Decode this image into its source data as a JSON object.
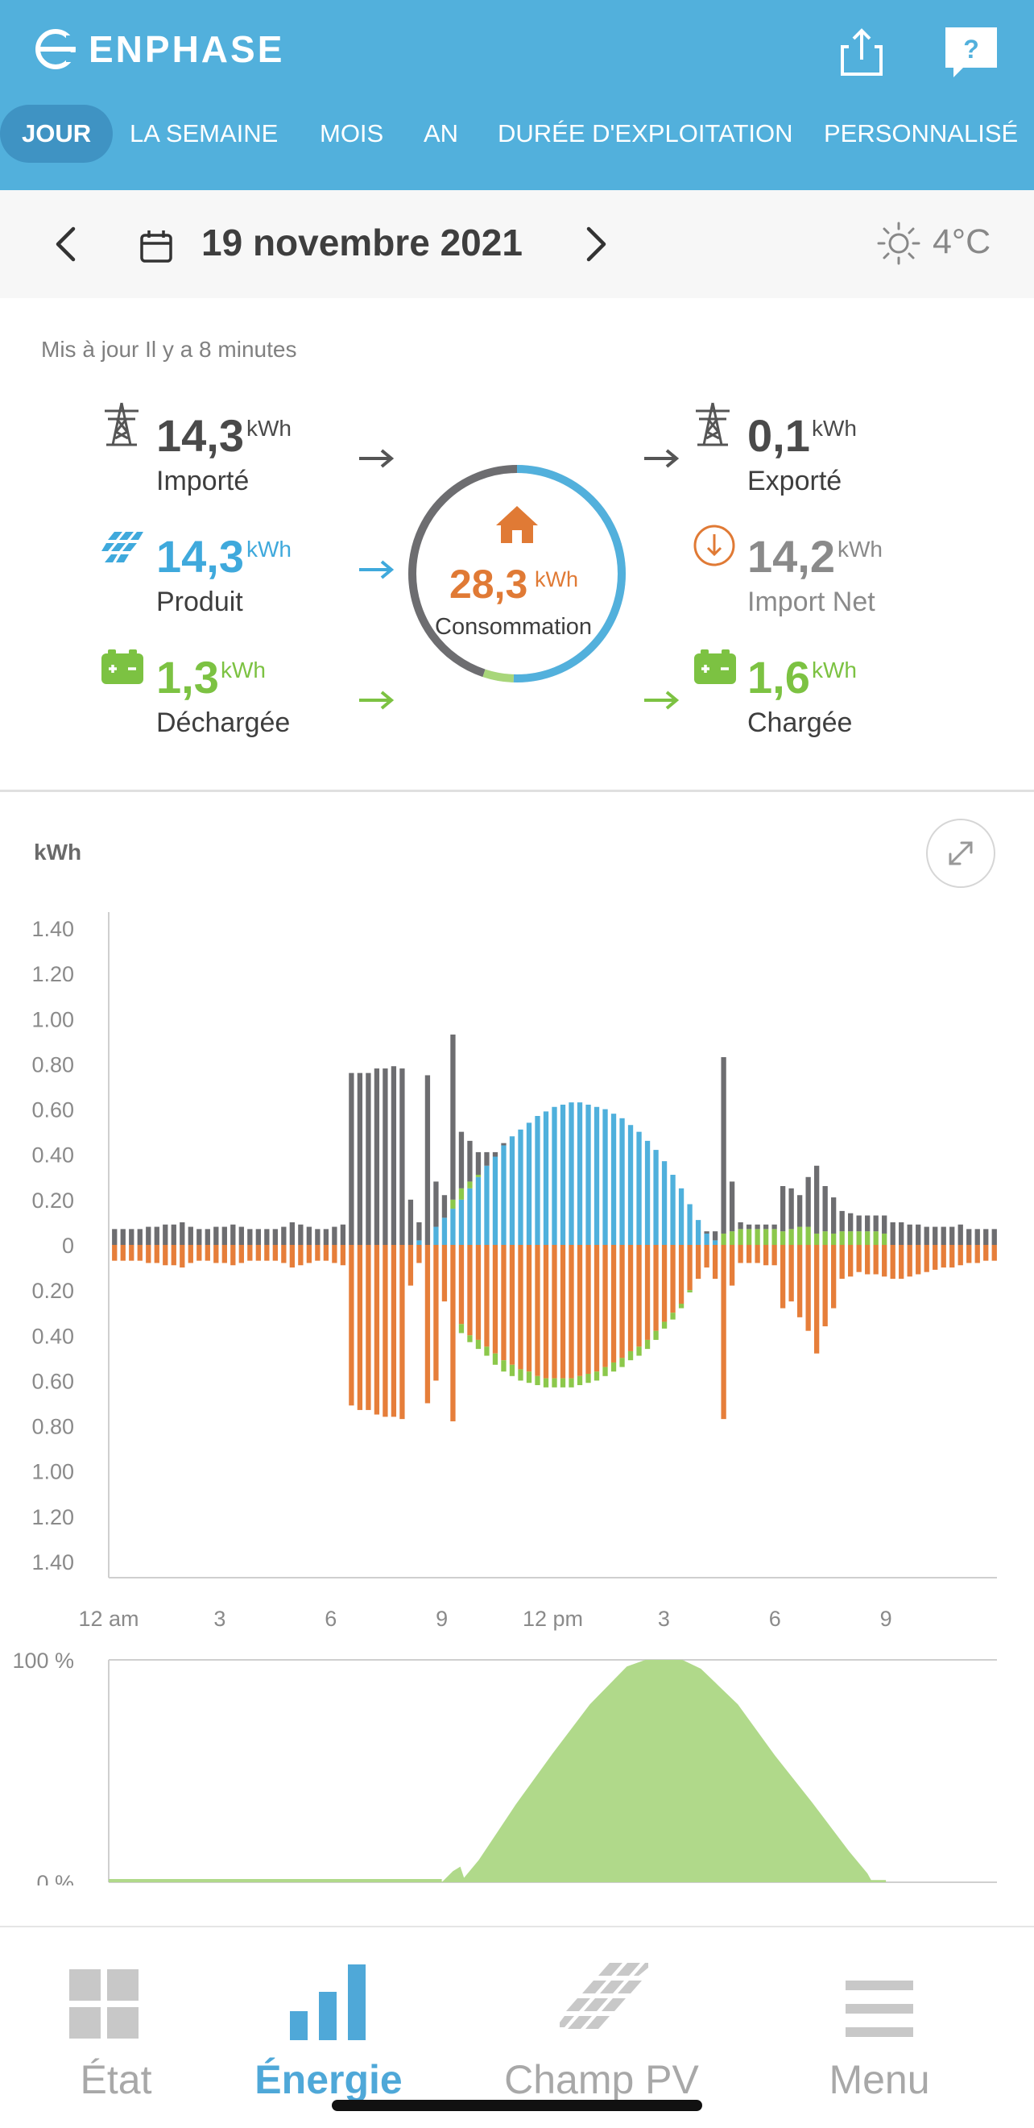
{
  "app": {
    "brand": "ENPHASE"
  },
  "header": {
    "tabs": [
      {
        "label": "JOUR",
        "active": true
      },
      {
        "label": "LA SEMAINE",
        "active": false
      },
      {
        "label": "MOIS",
        "active": false
      },
      {
        "label": "AN",
        "active": false
      },
      {
        "label": "DURÉE D'EXPLOITATION",
        "active": false
      },
      {
        "label": "PERSONNALISÉ",
        "active": false
      }
    ],
    "icons": {
      "share": "share-icon",
      "help": "help-icon"
    }
  },
  "datebar": {
    "date": "19 novembre 2021",
    "temperature": "4°C",
    "weather_icon": "sun-icon"
  },
  "summary": {
    "updated": "Mis à jour Il y a 8 minutes",
    "imported": {
      "value": "14,3",
      "unit": "kWh",
      "label": "Importé"
    },
    "produced": {
      "value": "14,3",
      "unit": "kWh",
      "label": "Produit"
    },
    "discharged": {
      "value": "1,3",
      "unit": "kWh",
      "label": "Déchargée"
    },
    "consumption": {
      "value": "28,3",
      "unit": "kWh",
      "label": "Consommation"
    },
    "exported": {
      "value": "0,1",
      "unit": "kWh",
      "label": "Exporté"
    },
    "net_import": {
      "value": "14,2",
      "unit": "kWh",
      "label": "Import Net"
    },
    "charged": {
      "value": "1,6",
      "unit": "kWh",
      "label": "Chargée"
    },
    "ring_shares": {
      "produced": 0.505,
      "discharged": 0.046,
      "imported": 0.449
    }
  },
  "colors": {
    "header": "#52b0dc",
    "grid": "#6d6d70",
    "solar": "#4fb0dc",
    "battery": "#8cc84b",
    "consumption": "#e67e3a",
    "soc_fill": "#b0d98a"
  },
  "chart_data": [
    {
      "type": "bar",
      "ylabel": "kWh",
      "yticks": [
        "1.40",
        "1.20",
        "1.00",
        "0.80",
        "0.60",
        "0.40",
        "0.20",
        "0",
        "0.20",
        "0.40",
        "0.60",
        "0.80",
        "1.00",
        "1.20",
        "1.40"
      ],
      "xticks": [
        "12 am",
        "3",
        "6",
        "9",
        "12 pm",
        "3",
        "6",
        "9"
      ],
      "ylim": [
        -1.4,
        1.4
      ],
      "interval_hours": 0.25,
      "series": {
        "grid": [
          0.07,
          0.07,
          0.07,
          0.07,
          0.08,
          0.08,
          0.09,
          0.09,
          0.1,
          0.08,
          0.07,
          0.07,
          0.08,
          0.08,
          0.09,
          0.08,
          0.07,
          0.07,
          0.07,
          0.07,
          0.08,
          0.1,
          0.09,
          0.08,
          0.07,
          0.07,
          0.08,
          0.09,
          0.76,
          0.76,
          0.76,
          0.78,
          0.78,
          0.79,
          0.78,
          0.2,
          0.08,
          0.75,
          0.2,
          0.1,
          0.73,
          0.25,
          0.18,
          0.1,
          0.06,
          0.02,
          0.01,
          0,
          0,
          0,
          0,
          0,
          0,
          0,
          0,
          0,
          0,
          0,
          0,
          0,
          0,
          0,
          0,
          0,
          0,
          0,
          0,
          0,
          0,
          0,
          0.01,
          0.04,
          0.78,
          0.22,
          0.03,
          0.02,
          0.02,
          0.02,
          0.02,
          0.2,
          0.18,
          0.14,
          0.22,
          0.3,
          0.2,
          0.16,
          0.09,
          0.08,
          0.07,
          0.07,
          0.07,
          0.08,
          0.1,
          0.1,
          0.09,
          0.09,
          0.08,
          0.08,
          0.08,
          0.08,
          0.09,
          0.07,
          0.07,
          0.07,
          0.07
        ],
        "solar": [
          0,
          0,
          0,
          0,
          0,
          0,
          0,
          0,
          0,
          0,
          0,
          0,
          0,
          0,
          0,
          0,
          0,
          0,
          0,
          0,
          0,
          0,
          0,
          0,
          0,
          0,
          0,
          0,
          0,
          0,
          0,
          0,
          0,
          0,
          0,
          0,
          0.02,
          0,
          0.08,
          0.12,
          0.16,
          0.2,
          0.25,
          0.3,
          0.35,
          0.39,
          0.44,
          0.48,
          0.51,
          0.54,
          0.57,
          0.59,
          0.61,
          0.62,
          0.63,
          0.63,
          0.62,
          0.61,
          0.6,
          0.58,
          0.56,
          0.53,
          0.5,
          0.46,
          0.42,
          0.37,
          0.31,
          0.25,
          0.18,
          0.11,
          0.05,
          0.02,
          0,
          0,
          0,
          0,
          0,
          0,
          0,
          0,
          0,
          0,
          0,
          0,
          0,
          0,
          0,
          0,
          0,
          0,
          0,
          0,
          0,
          0,
          0,
          0,
          0,
          0,
          0,
          0,
          0,
          0,
          0,
          0,
          0
        ],
        "battery_discharge": [
          0,
          0,
          0,
          0,
          0,
          0,
          0,
          0,
          0,
          0,
          0,
          0,
          0,
          0,
          0,
          0,
          0,
          0,
          0,
          0,
          0,
          0,
          0,
          0,
          0,
          0,
          0,
          0,
          0,
          0,
          0,
          0,
          0,
          0,
          0,
          0,
          0,
          0,
          0,
          0,
          0.04,
          0.05,
          0.03,
          0.01,
          0,
          0,
          0,
          0,
          0,
          0,
          0,
          0,
          0,
          0,
          0,
          0,
          0,
          0,
          0,
          0,
          0,
          0,
          0,
          0,
          0,
          0,
          0,
          0,
          0,
          0,
          0,
          0,
          0.05,
          0.06,
          0.07,
          0.07,
          0.07,
          0.07,
          0.07,
          0.06,
          0.07,
          0.08,
          0.08,
          0.05,
          0.06,
          0.05,
          0.06,
          0.06,
          0.06,
          0.06,
          0.06,
          0.05,
          0,
          0,
          0,
          0,
          0,
          0,
          0,
          0,
          0,
          0,
          0,
          0,
          0
        ],
        "consumption": [
          0.07,
          0.07,
          0.07,
          0.07,
          0.08,
          0.08,
          0.09,
          0.09,
          0.1,
          0.08,
          0.07,
          0.07,
          0.08,
          0.08,
          0.09,
          0.08,
          0.07,
          0.07,
          0.07,
          0.07,
          0.08,
          0.1,
          0.09,
          0.08,
          0.07,
          0.07,
          0.08,
          0.09,
          0.71,
          0.73,
          0.73,
          0.75,
          0.76,
          0.76,
          0.77,
          0.18,
          0.08,
          0.7,
          0.6,
          0.25,
          0.78,
          0.35,
          0.4,
          0.42,
          0.45,
          0.48,
          0.51,
          0.53,
          0.55,
          0.56,
          0.58,
          0.59,
          0.59,
          0.59,
          0.59,
          0.58,
          0.57,
          0.56,
          0.54,
          0.52,
          0.5,
          0.47,
          0.45,
          0.42,
          0.38,
          0.34,
          0.3,
          0.26,
          0.2,
          0.15,
          0.1,
          0.15,
          0.77,
          0.18,
          0.08,
          0.08,
          0.08,
          0.09,
          0.09,
          0.28,
          0.25,
          0.32,
          0.38,
          0.48,
          0.36,
          0.28,
          0.15,
          0.14,
          0.12,
          0.13,
          0.13,
          0.14,
          0.15,
          0.15,
          0.14,
          0.13,
          0.12,
          0.11,
          0.1,
          0.1,
          0.09,
          0.08,
          0.08,
          0.07,
          0.07
        ],
        "battery_charge": [
          0,
          0,
          0,
          0,
          0,
          0,
          0,
          0,
          0,
          0,
          0,
          0,
          0,
          0,
          0,
          0,
          0,
          0,
          0,
          0,
          0,
          0,
          0,
          0,
          0,
          0,
          0,
          0,
          0,
          0,
          0,
          0,
          0,
          0,
          0,
          0,
          0,
          0,
          0,
          0,
          0,
          0.04,
          0.03,
          0.04,
          0.04,
          0.05,
          0.05,
          0.05,
          0.05,
          0.05,
          0.04,
          0.04,
          0.04,
          0.04,
          0.04,
          0.04,
          0.04,
          0.04,
          0.04,
          0.04,
          0.04,
          0.04,
          0.04,
          0.04,
          0.04,
          0.03,
          0.03,
          0.02,
          0.01,
          0,
          0,
          0,
          0,
          0,
          0,
          0,
          0,
          0,
          0,
          0,
          0,
          0,
          0,
          0,
          0,
          0,
          0,
          0,
          0,
          0,
          0,
          0,
          0,
          0,
          0,
          0,
          0,
          0,
          0,
          0,
          0,
          0,
          0,
          0,
          0
        ]
      }
    },
    {
      "type": "area",
      "ylabel": "",
      "yticks": [
        "100 %",
        "0 %"
      ],
      "ylim": [
        0,
        100
      ],
      "x_hours": [
        0,
        9.0,
        9.3,
        9.5,
        9.6,
        10.0,
        11.0,
        12.0,
        13.0,
        14.0,
        14.5,
        15.0,
        15.5,
        16.0,
        17.0,
        18.0,
        19.0,
        20.0,
        20.5,
        20.6,
        21.0
      ],
      "soc_percent": [
        0,
        0,
        5,
        7,
        2,
        10,
        35,
        58,
        80,
        97,
        100,
        100,
        100,
        96,
        80,
        57,
        36,
        14,
        4,
        1,
        1
      ]
    }
  ],
  "bottomnav": {
    "items": [
      {
        "label": "État",
        "icon": "grid-icon",
        "active": false
      },
      {
        "label": "Énergie",
        "icon": "bar-chart-icon",
        "active": true
      },
      {
        "label": "Champ PV",
        "icon": "solar-panel-icon",
        "active": false
      },
      {
        "label": "Menu",
        "icon": "hamburger-icon",
        "active": false
      }
    ]
  }
}
